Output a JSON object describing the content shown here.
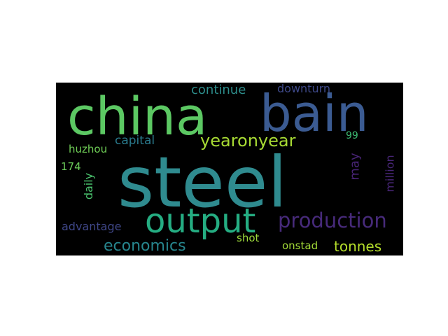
{
  "wordcloud": {
    "background_color": "#000000",
    "words": {
      "china": "china",
      "bain": "bain",
      "steel": "steel",
      "output": "output",
      "production": "production",
      "yearonyear": "yearonyear",
      "continue": "continue",
      "downturn": "downturn",
      "economics": "economics",
      "tonnes": "tonnes",
      "capital": "capital",
      "huzhou": "huzhou",
      "n174": "174",
      "advantage": "advantage",
      "shot": "shot",
      "onstad": "onstad",
      "n99": "99",
      "daily": "daily",
      "may": "may",
      "million": "million"
    },
    "colors": {
      "green": "#5cc863",
      "blue": "#3b5b92",
      "teal": "#2f8b8f",
      "purple": "#472a7a",
      "yellow_green": "#a8db34"
    }
  }
}
